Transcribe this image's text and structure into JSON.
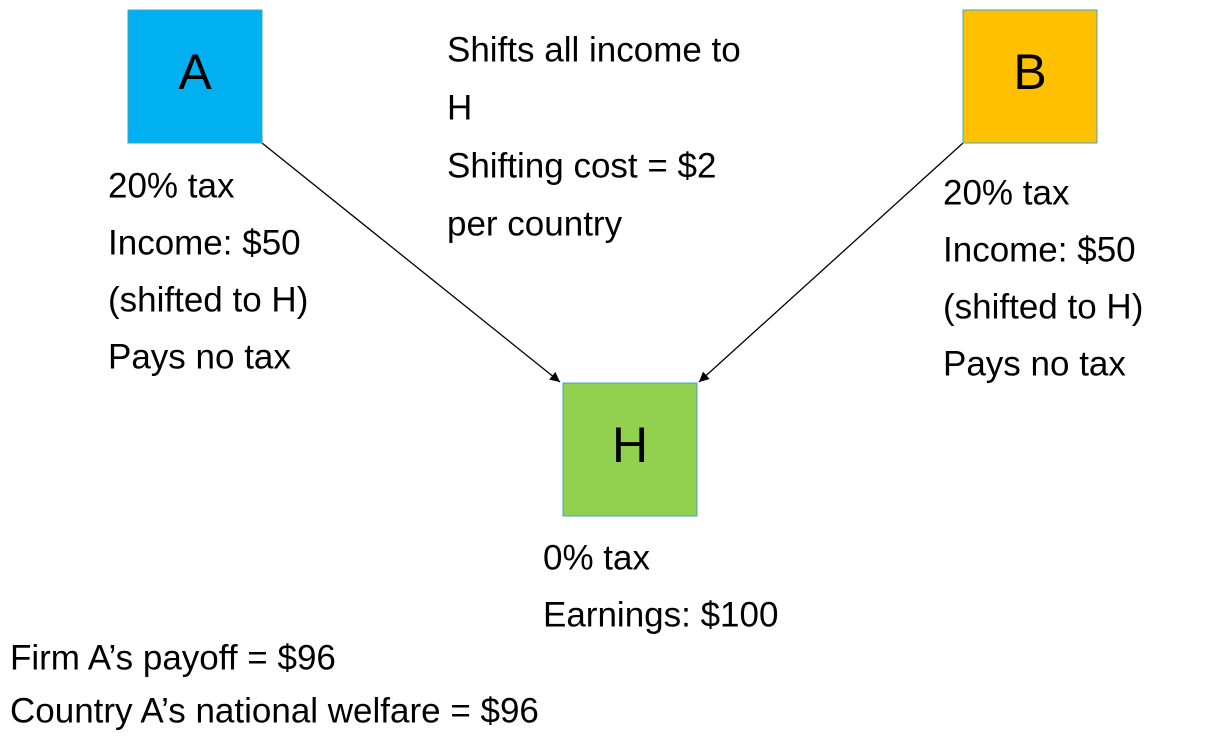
{
  "nodes": [
    {
      "label": "A",
      "color": "#00b0f0",
      "notes": [
        "20% tax",
        "Income: $50",
        "(shifted to H)",
        "Pays no tax"
      ]
    },
    {
      "label": "B",
      "color": "#ffc000",
      "notes": [
        "20% tax",
        "Income: $50",
        "(shifted to H)",
        "Pays no tax"
      ]
    },
    {
      "label": "H",
      "color": "#92d050",
      "notes": [
        "0% tax",
        "Earnings: $100"
      ]
    }
  ],
  "annotation": [
    "Shifts all income to",
    "H",
    "Shifting cost = $2",
    "per country"
  ],
  "summary": [
    "Firm A’s payoff = $96",
    "Country A’s national welfare = $96"
  ]
}
